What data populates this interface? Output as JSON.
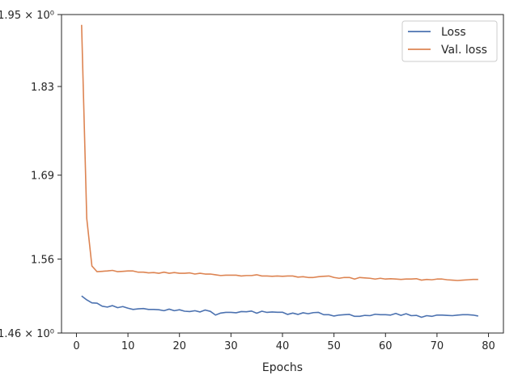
{
  "chart_data": {
    "type": "line",
    "title": "",
    "xlabel": "Epochs",
    "ylabel": "",
    "yscale": "log",
    "xlim": [
      -2.9,
      82.9
    ],
    "ylim": [
      1.4604,
      1.9497
    ],
    "grid": false,
    "legend_position": "top-right",
    "x_ticks": [
      0,
      10,
      20,
      30,
      40,
      50,
      60,
      70,
      80
    ],
    "x_tick_labels": [
      "0",
      "10",
      "20",
      "30",
      "40",
      "50",
      "60",
      "70",
      "80"
    ],
    "y_ticks": [
      1.4604,
      1.5618,
      1.6853,
      1.8265,
      1.9497
    ],
    "y_tick_labels": [
      "1.46 × 10⁰",
      "1.56",
      "1.69",
      "1.83",
      "1.95 × 10⁰"
    ],
    "x": [
      1,
      2,
      3,
      4,
      5,
      6,
      7,
      8,
      9,
      10,
      11,
      12,
      13,
      14,
      15,
      16,
      17,
      18,
      19,
      20,
      21,
      22,
      23,
      24,
      25,
      26,
      27,
      28,
      29,
      30,
      31,
      32,
      33,
      34,
      35,
      36,
      37,
      38,
      39,
      40,
      41,
      42,
      43,
      44,
      45,
      46,
      47,
      48,
      49,
      50,
      51,
      52,
      53,
      54,
      55,
      56,
      57,
      58,
      59,
      60,
      61,
      62,
      63,
      64,
      65,
      66,
      67,
      68,
      69,
      70,
      71,
      72,
      73,
      74,
      75,
      76,
      77,
      78
    ],
    "series": [
      {
        "name": "Loss",
        "color": "#4c72b0",
        "values": [
          1.5104,
          1.505,
          1.5009,
          1.5005,
          1.4964,
          1.4952,
          1.4972,
          1.4944,
          1.4959,
          1.4937,
          1.492,
          1.4928,
          1.4932,
          1.492,
          1.492,
          1.4916,
          1.4903,
          1.4924,
          1.4903,
          1.4916,
          1.4896,
          1.4891,
          1.4903,
          1.4886,
          1.4912,
          1.4894,
          1.4844,
          1.4871,
          1.488,
          1.488,
          1.4875,
          1.4891,
          1.4889,
          1.4898,
          1.4869,
          1.4896,
          1.488,
          1.4886,
          1.4882,
          1.4882,
          1.4853,
          1.4871,
          1.4853,
          1.4875,
          1.4862,
          1.4877,
          1.488,
          1.4849,
          1.4849,
          1.4831,
          1.4844,
          1.4849,
          1.4853,
          1.4827,
          1.4827,
          1.484,
          1.4836,
          1.4855,
          1.4849,
          1.4849,
          1.4844,
          1.4866,
          1.484,
          1.4862,
          1.4836,
          1.484,
          1.4814,
          1.4836,
          1.4827,
          1.4844,
          1.4844,
          1.484,
          1.4836,
          1.4844,
          1.4849,
          1.4849,
          1.4844,
          1.4831
        ]
      },
      {
        "name": "Val. loss",
        "color": "#dd8452",
        "values": [
          1.9315,
          1.6205,
          1.552,
          1.544,
          1.5445,
          1.545,
          1.5458,
          1.544,
          1.5445,
          1.545,
          1.545,
          1.5433,
          1.5433,
          1.5423,
          1.5428,
          1.5418,
          1.5433,
          1.5418,
          1.5428,
          1.5418,
          1.5418,
          1.5423,
          1.5407,
          1.5418,
          1.5407,
          1.5407,
          1.5397,
          1.5386,
          1.5391,
          1.5391,
          1.5391,
          1.538,
          1.5386,
          1.5386,
          1.5397,
          1.538,
          1.538,
          1.5375,
          1.538,
          1.5375,
          1.538,
          1.538,
          1.5364,
          1.537,
          1.5359,
          1.5359,
          1.537,
          1.5375,
          1.538,
          1.5359,
          1.5348,
          1.5359,
          1.5359,
          1.5337,
          1.5359,
          1.5353,
          1.5348,
          1.5337,
          1.5348,
          1.5337,
          1.5342,
          1.5337,
          1.5332,
          1.5337,
          1.5337,
          1.5342,
          1.5322,
          1.5332,
          1.5327,
          1.5337,
          1.5337,
          1.5327,
          1.5322,
          1.5317,
          1.5322,
          1.5327,
          1.5332,
          1.5332
        ]
      }
    ]
  }
}
